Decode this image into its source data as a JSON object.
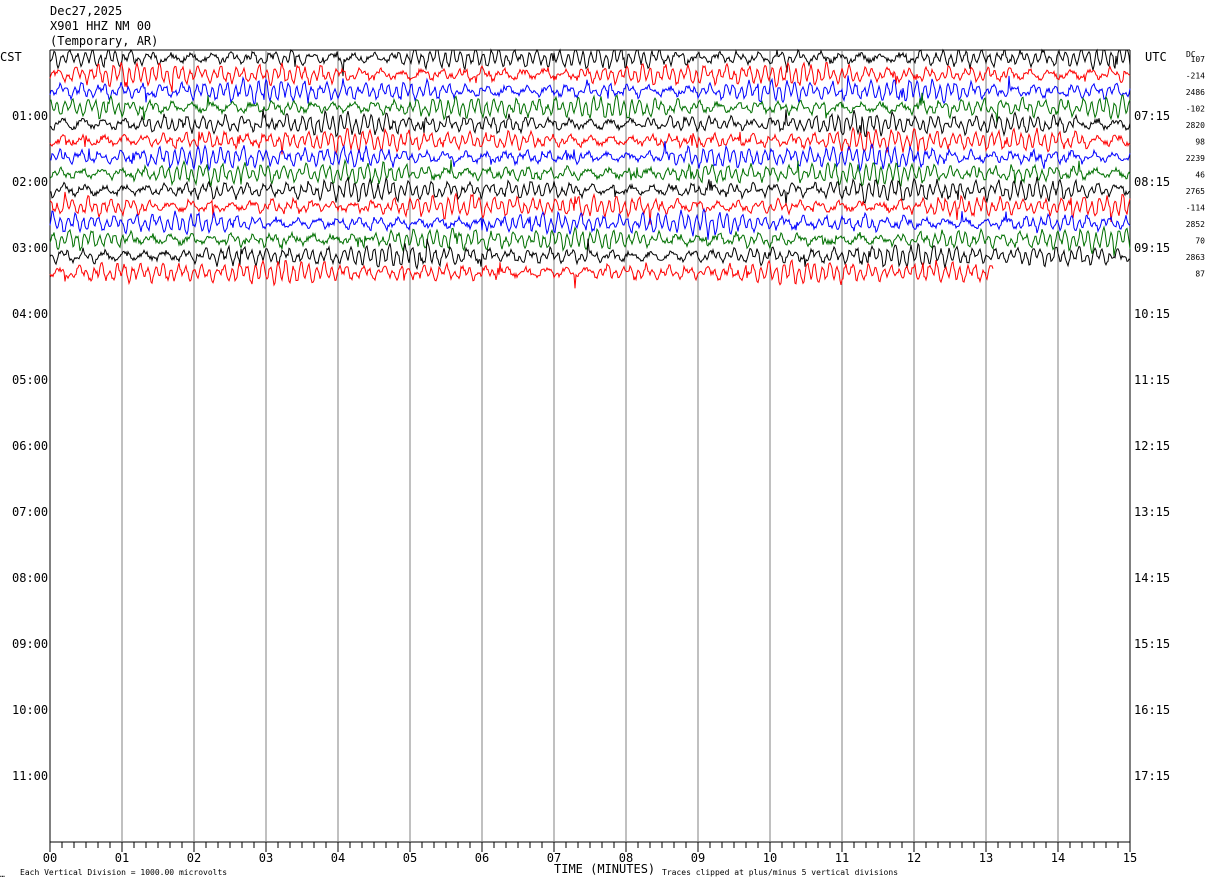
{
  "header": {
    "date": "Dec27,2025",
    "station": "X901 HHZ NM 00",
    "network": "(Temporary, AR)"
  },
  "corner_labels": {
    "left": "CST",
    "right": "UTC",
    "dc": "DC"
  },
  "footer": {
    "scale_note": "Each Vertical Division = 1000.00 microvolts",
    "axis_title": "TIME (MINUTES)",
    "clip_note": "Traces clipped at plus/minus 5 vertical divisions",
    "mark": "…"
  },
  "chart_data": {
    "type": "line",
    "title": "",
    "xlabel": "TIME (MINUTES)",
    "ylabel": "",
    "xlim": [
      0,
      15
    ],
    "x_ticks": [
      "00",
      "01",
      "02",
      "03",
      "04",
      "05",
      "06",
      "07",
      "08",
      "09",
      "10",
      "11",
      "12",
      "13",
      "14",
      "15"
    ],
    "left_ticks": [
      "01:00",
      "02:00",
      "03:00",
      "04:00",
      "05:00",
      "06:00",
      "07:00",
      "08:00",
      "09:00",
      "10:00",
      "11:00"
    ],
    "right_ticks": [
      "07:15",
      "08:15",
      "09:15",
      "10:15",
      "11:15",
      "12:15",
      "13:15",
      "14:15",
      "15:15",
      "16:15",
      "17:15"
    ],
    "rows_per_hour": 4,
    "minutes_per_row": 15,
    "trace_colors": [
      "#000000",
      "#ff0000",
      "#0000ff",
      "#007000"
    ],
    "dc_offsets": [
      "107",
      "-214",
      "2486",
      "-102",
      "2820",
      "98",
      "2239",
      "46",
      "2765",
      "-114",
      "2852",
      "70",
      "2863",
      "87"
    ],
    "traces": [
      {
        "row": 0,
        "end_minute": 15
      },
      {
        "row": 1,
        "end_minute": 15
      },
      {
        "row": 2,
        "end_minute": 15
      },
      {
        "row": 3,
        "end_minute": 15
      },
      {
        "row": 4,
        "end_minute": 15
      },
      {
        "row": 5,
        "end_minute": 15
      },
      {
        "row": 6,
        "end_minute": 15
      },
      {
        "row": 7,
        "end_minute": 15
      },
      {
        "row": 8,
        "end_minute": 15
      },
      {
        "row": 9,
        "end_minute": 15
      },
      {
        "row": 10,
        "end_minute": 15
      },
      {
        "row": 11,
        "end_minute": 15
      },
      {
        "row": 12,
        "end_minute": 15
      },
      {
        "row": 13,
        "end_minute": 13.1
      }
    ],
    "grid": true
  }
}
